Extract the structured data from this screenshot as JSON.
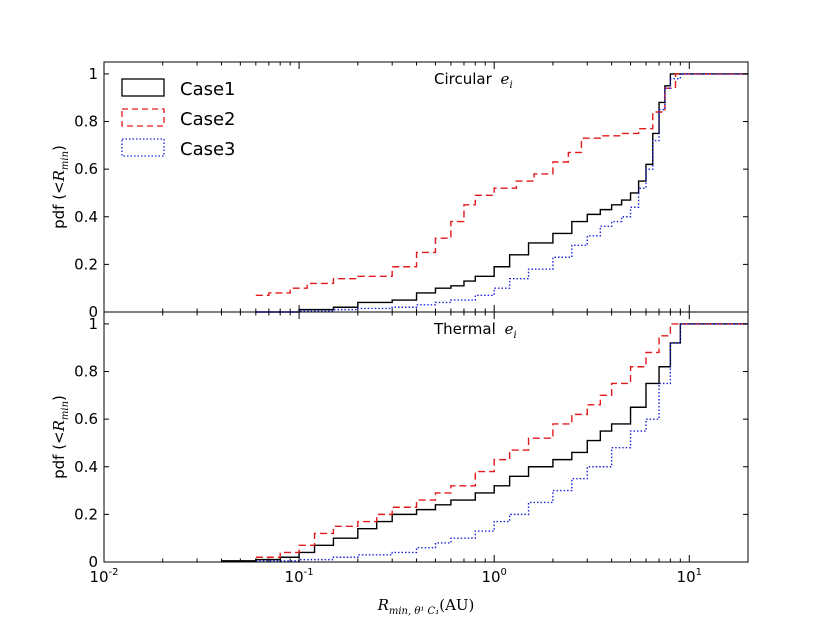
{
  "chart_data": [
    {
      "type": "line",
      "panel": "top",
      "title_text": "Circular",
      "title_math": "e",
      "title_sub": "i",
      "ylabel_text": "pdf (<",
      "ylabel_math": "R",
      "ylabel_sub": "min",
      "ylabel_close": ")",
      "xscale": "log",
      "xlim": [
        0.01,
        20
      ],
      "ylim": [
        0,
        1.05
      ],
      "yticks": [
        "0",
        "0.2",
        "0.4",
        "0.6",
        "0.8",
        "1"
      ],
      "legend": "top-left",
      "series": [
        {
          "name": "Case1",
          "color": "#000000",
          "dash": "solid",
          "x": [
            0.06,
            0.1,
            0.15,
            0.2,
            0.3,
            0.4,
            0.5,
            0.6,
            0.7,
            0.8,
            1.0,
            1.2,
            1.5,
            2.0,
            2.5,
            3.0,
            3.5,
            4.0,
            4.5,
            5.0,
            5.5,
            6.0,
            6.5,
            7.0,
            7.5,
            8.0,
            9.0,
            20
          ],
          "y": [
            0.0,
            0.01,
            0.02,
            0.04,
            0.05,
            0.08,
            0.1,
            0.11,
            0.13,
            0.15,
            0.19,
            0.24,
            0.29,
            0.33,
            0.38,
            0.41,
            0.43,
            0.45,
            0.47,
            0.5,
            0.55,
            0.62,
            0.75,
            0.88,
            0.95,
            1.0,
            1.0,
            1.0
          ]
        },
        {
          "name": "Case2",
          "color": "#e31a1c",
          "dash": "dashed",
          "x": [
            0.06,
            0.07,
            0.09,
            0.11,
            0.15,
            0.2,
            0.3,
            0.4,
            0.5,
            0.6,
            0.7,
            0.8,
            1.0,
            1.3,
            1.6,
            2.0,
            2.4,
            2.8,
            3.5,
            4.5,
            5.5,
            6.5,
            7.5,
            8.5,
            20
          ],
          "y": [
            0.07,
            0.08,
            0.1,
            0.12,
            0.14,
            0.15,
            0.19,
            0.25,
            0.31,
            0.38,
            0.45,
            0.49,
            0.52,
            0.55,
            0.58,
            0.63,
            0.67,
            0.73,
            0.74,
            0.75,
            0.77,
            0.84,
            0.94,
            1.0,
            1.0
          ]
        },
        {
          "name": "Case3",
          "color": "#1f24d9",
          "dash": "dotted",
          "x": [
            0.06,
            0.1,
            0.15,
            0.2,
            0.3,
            0.4,
            0.5,
            0.6,
            0.8,
            1.0,
            1.2,
            1.5,
            2.0,
            2.5,
            3.0,
            3.5,
            4.0,
            4.5,
            5.0,
            5.5,
            6.0,
            6.5,
            7.0,
            7.5,
            8.0,
            9.0,
            20
          ],
          "y": [
            0.0,
            0.005,
            0.01,
            0.015,
            0.02,
            0.03,
            0.04,
            0.05,
            0.07,
            0.1,
            0.14,
            0.18,
            0.23,
            0.28,
            0.32,
            0.36,
            0.38,
            0.4,
            0.44,
            0.52,
            0.6,
            0.72,
            0.85,
            0.94,
            0.98,
            1.0,
            1.0
          ]
        }
      ]
    },
    {
      "type": "line",
      "panel": "bottom",
      "title_text": "Thermal",
      "title_math": "e",
      "title_sub": "i",
      "ylabel_text": "pdf (<",
      "ylabel_math": "R",
      "ylabel_sub": "min",
      "ylabel_close": ")",
      "xlabel_math": "R",
      "xlabel_sub": "min, θ¹ C₁",
      "xlabel_unit": "(AU)",
      "xscale": "log",
      "xlim": [
        0.01,
        20
      ],
      "ylim": [
        0,
        1.05
      ],
      "xticks": [
        {
          "value": 0.01,
          "base": "10",
          "exp": "-2"
        },
        {
          "value": 0.1,
          "base": "10",
          "exp": "-1"
        },
        {
          "value": 1,
          "base": "10",
          "exp": "0"
        },
        {
          "value": 10,
          "base": "10",
          "exp": "1"
        }
      ],
      "yticks": [
        "0",
        "0.2",
        "0.4",
        "0.6",
        "0.8",
        "1"
      ],
      "series": [
        {
          "name": "Case1",
          "color": "#000000",
          "dash": "solid",
          "x": [
            0.04,
            0.06,
            0.08,
            0.1,
            0.12,
            0.15,
            0.2,
            0.25,
            0.3,
            0.4,
            0.5,
            0.6,
            0.8,
            1.0,
            1.2,
            1.5,
            2.0,
            2.5,
            3.0,
            3.5,
            4.0,
            5.0,
            6.0,
            7.0,
            8.0,
            9.0,
            20
          ],
          "y": [
            0.005,
            0.01,
            0.02,
            0.04,
            0.07,
            0.1,
            0.14,
            0.17,
            0.2,
            0.22,
            0.24,
            0.26,
            0.29,
            0.32,
            0.36,
            0.4,
            0.43,
            0.46,
            0.51,
            0.55,
            0.58,
            0.65,
            0.75,
            0.82,
            0.92,
            1.0,
            1.0
          ]
        },
        {
          "name": "Case2",
          "color": "#e31a1c",
          "dash": "dashed",
          "x": [
            0.06,
            0.08,
            0.1,
            0.12,
            0.15,
            0.2,
            0.25,
            0.3,
            0.4,
            0.5,
            0.6,
            0.8,
            1.0,
            1.2,
            1.5,
            2.0,
            2.5,
            3.0,
            3.5,
            4.0,
            5.0,
            6.0,
            7.0,
            8.0,
            9.0,
            20
          ],
          "y": [
            0.02,
            0.04,
            0.07,
            0.12,
            0.15,
            0.17,
            0.2,
            0.23,
            0.26,
            0.29,
            0.32,
            0.38,
            0.43,
            0.47,
            0.52,
            0.58,
            0.62,
            0.66,
            0.7,
            0.75,
            0.82,
            0.88,
            0.95,
            1.0,
            1.0,
            1.0
          ]
        },
        {
          "name": "Case3",
          "color": "#1f24d9",
          "dash": "dotted",
          "x": [
            0.06,
            0.1,
            0.15,
            0.2,
            0.3,
            0.4,
            0.5,
            0.6,
            0.8,
            1.0,
            1.2,
            1.5,
            2.0,
            2.5,
            3.0,
            4.0,
            5.0,
            6.0,
            7.0,
            8.0,
            9.0,
            20
          ],
          "y": [
            0.005,
            0.01,
            0.02,
            0.03,
            0.04,
            0.06,
            0.08,
            0.1,
            0.13,
            0.17,
            0.2,
            0.25,
            0.3,
            0.35,
            0.4,
            0.48,
            0.55,
            0.6,
            0.75,
            0.92,
            1.0,
            1.0
          ]
        }
      ]
    }
  ]
}
